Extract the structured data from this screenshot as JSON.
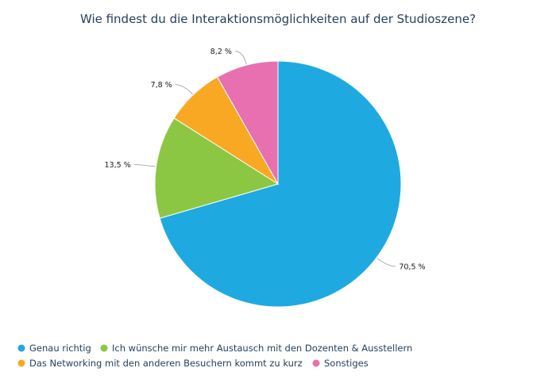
{
  "chart_data": {
    "type": "pie",
    "title": "Wie findest du die Interaktionsmöglichkeiten auf der Studioszene?",
    "start_angle_deg": 0,
    "direction": "clockwise",
    "legend_position": "bottom-left",
    "slices": [
      {
        "name": "Genau richtig",
        "value": 70.5,
        "label": "70,5 %",
        "color": "#1fa9e1"
      },
      {
        "name": "Ich wünsche mir mehr Austausch mit den Dozenten & Ausstellern",
        "value": 13.5,
        "label": "13,5 %",
        "color": "#8bc743"
      },
      {
        "name": "Das Networking mit den anderen Besuchern kommt zu kurz",
        "value": 7.8,
        "label": "7,8 %",
        "color": "#f9a823"
      },
      {
        "name": "Sonstiges",
        "value": 8.2,
        "label": "8,2 %",
        "color": "#e870b0"
      }
    ]
  }
}
